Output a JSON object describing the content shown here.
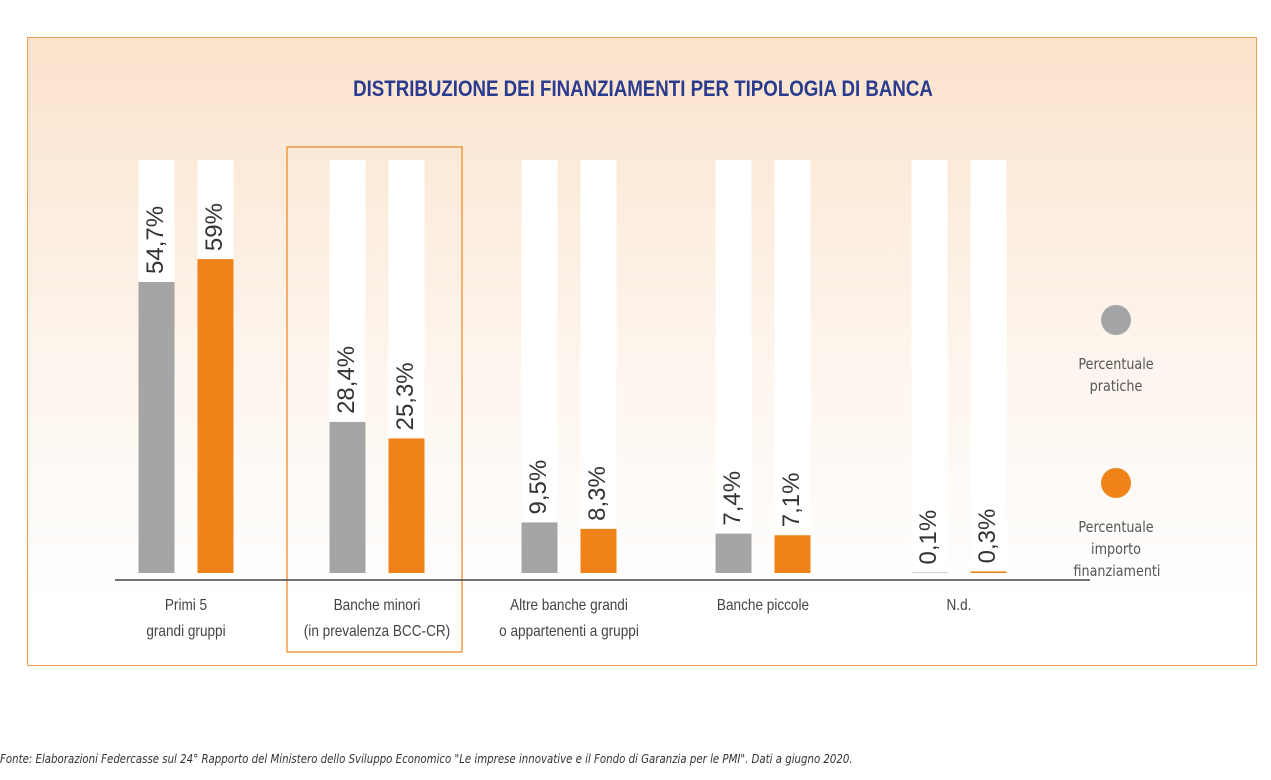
{
  "chart_data": {
    "type": "bar",
    "title": "DISTRIBUZIONE DEI FINANZIAMENTI PER TIPOLOGIA DI BANCA",
    "categories": [
      [
        "Primi 5",
        "grandi gruppi"
      ],
      [
        "Banche minori",
        "(in prevalenza BCC-CR)"
      ],
      [
        "Altre banche grandi",
        "o appartenenti a gruppi"
      ],
      [
        "Banche piccole"
      ],
      [
        "N.d."
      ]
    ],
    "series": [
      {
        "name": "Percentuale pratiche",
        "color": "#a5a5a5",
        "values": [
          54.7,
          28.4,
          9.5,
          7.4,
          0.1
        ],
        "value_labels": [
          "54,7%",
          "28,4%",
          "9,5%",
          "7,4%",
          "0,1%"
        ]
      },
      {
        "name": "Percentuale importo finanziamenti",
        "color": "#ef8219",
        "values": [
          59,
          25.3,
          8.3,
          7.1,
          0.3
        ],
        "value_labels": [
          "59%",
          "25,3%",
          "8,3%",
          "7,1%",
          "0,3%"
        ]
      }
    ],
    "source": "Fonte: Elaborazioni Federcasse sul 24° Rapporto del Ministero dello Sviluppo Economico \"Le imprese innovative e il Fondo di Garanzia per le PMI\". Dati a giugno 2020."
  }
}
